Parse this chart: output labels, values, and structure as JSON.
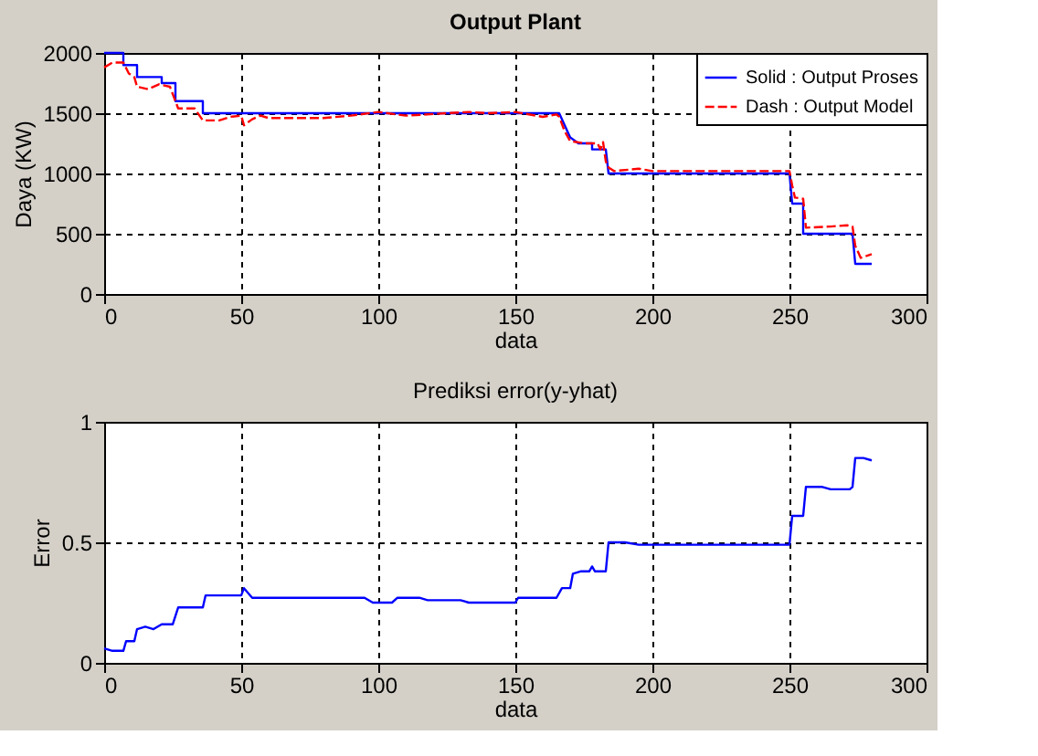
{
  "chart_data": [
    {
      "type": "line",
      "title": "Output Plant",
      "xlabel": "data",
      "ylabel": "Daya (KW)",
      "xlim": [
        0,
        300
      ],
      "xticks": [
        0,
        50,
        100,
        150,
        200,
        250,
        300
      ],
      "ylim": [
        0,
        2000
      ],
      "yticks": [
        0,
        500,
        1000,
        1500,
        2000
      ],
      "grid": true,
      "legend": "top right",
      "series": [
        {
          "name": "Solid : Output Proses",
          "color": "#0000ff",
          "line_style": "solid",
          "x": [
            0,
            7,
            7,
            12,
            12,
            21,
            21,
            26,
            26,
            36,
            36,
            166,
            168,
            170,
            173,
            178,
            178,
            183,
            184,
            250,
            251,
            255,
            255,
            273,
            274,
            280
          ],
          "values": [
            2000,
            2000,
            1900,
            1900,
            1800,
            1800,
            1750,
            1750,
            1600,
            1600,
            1500,
            1500,
            1400,
            1300,
            1250,
            1250,
            1200,
            1200,
            1000,
            1000,
            750,
            750,
            500,
            500,
            250,
            250
          ]
        },
        {
          "name": "Dash : Output Model",
          "color": "#ff0000",
          "line_style": "dashed",
          "x": [
            0,
            3,
            7,
            9,
            11,
            12,
            16,
            20,
            24,
            26,
            27,
            33,
            36,
            42,
            46,
            50,
            51,
            54,
            57,
            60,
            80,
            90,
            100,
            110,
            125,
            133,
            140,
            150,
            160,
            165,
            166,
            168,
            170,
            175,
            180,
            181,
            182,
            183,
            184,
            186,
            195,
            200,
            225,
            250,
            251,
            252,
            255,
            256,
            265,
            271,
            273,
            274,
            276,
            280
          ],
          "values": [
            1880,
            1920,
            1920,
            1830,
            1800,
            1720,
            1700,
            1740,
            1720,
            1600,
            1540,
            1540,
            1440,
            1440,
            1470,
            1480,
            1400,
            1450,
            1480,
            1460,
            1460,
            1480,
            1510,
            1480,
            1500,
            1510,
            1500,
            1510,
            1470,
            1490,
            1470,
            1350,
            1270,
            1250,
            1250,
            1200,
            1260,
            1100,
            1050,
            1020,
            1040,
            1020,
            1020,
            1020,
            900,
            800,
            790,
            550,
            560,
            570,
            560,
            400,
            300,
            330
          ]
        }
      ]
    },
    {
      "type": "line",
      "title": "Prediksi error(y-yhat)",
      "xlabel": "data",
      "ylabel": "Error",
      "xlim": [
        0,
        300
      ],
      "xticks": [
        0,
        50,
        100,
        150,
        200,
        250,
        300
      ],
      "ylim": [
        0,
        1
      ],
      "yticks": [
        0,
        0.5,
        1
      ],
      "grid": true,
      "series": [
        {
          "color": "#0000ff",
          "line_style": "solid",
          "x": [
            0,
            3,
            7,
            8,
            11,
            12,
            15,
            18,
            21,
            25,
            27,
            30,
            36,
            37,
            50,
            51,
            54,
            70,
            95,
            98,
            105,
            107,
            115,
            118,
            130,
            133,
            150,
            151,
            165,
            167,
            170,
            171,
            174,
            177,
            178,
            179,
            183,
            184,
            190,
            195,
            250,
            251,
            255,
            256,
            262,
            265,
            272,
            273,
            274,
            277,
            280
          ],
          "values": [
            0.06,
            0.05,
            0.05,
            0.09,
            0.09,
            0.14,
            0.15,
            0.14,
            0.16,
            0.16,
            0.23,
            0.23,
            0.23,
            0.28,
            0.28,
            0.31,
            0.27,
            0.27,
            0.27,
            0.25,
            0.25,
            0.27,
            0.27,
            0.26,
            0.26,
            0.25,
            0.25,
            0.27,
            0.27,
            0.31,
            0.31,
            0.37,
            0.38,
            0.38,
            0.4,
            0.38,
            0.38,
            0.5,
            0.5,
            0.49,
            0.49,
            0.61,
            0.61,
            0.73,
            0.73,
            0.72,
            0.72,
            0.73,
            0.85,
            0.85,
            0.84
          ]
        }
      ]
    }
  ]
}
